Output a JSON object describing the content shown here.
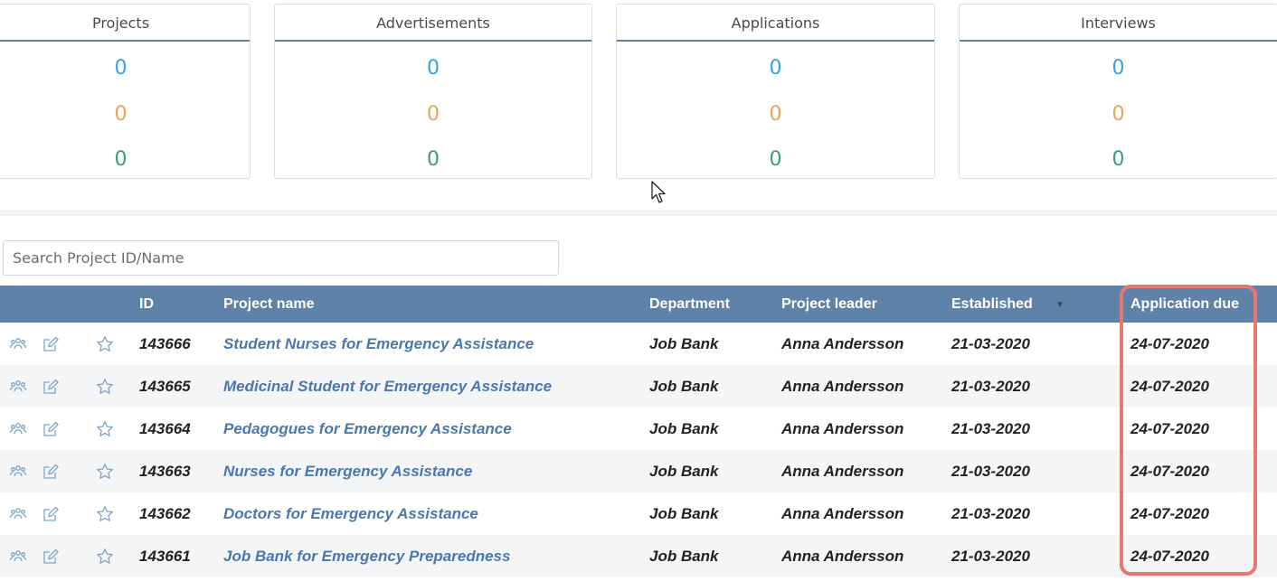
{
  "stats": [
    {
      "title": "Projects",
      "values": [
        "0",
        "0",
        "0"
      ]
    },
    {
      "title": "Advertisements",
      "values": [
        "0",
        "0",
        "0"
      ]
    },
    {
      "title": "Applications",
      "values": [
        "0",
        "0",
        "0"
      ]
    },
    {
      "title": "Interviews",
      "values": [
        "0",
        "0",
        "0"
      ]
    }
  ],
  "stat_colors": {
    "row1": "#36a3d9",
    "row2": "#e0a85c",
    "row3": "#3a9a86"
  },
  "search": {
    "placeholder": "Search Project ID/Name",
    "value": ""
  },
  "table": {
    "headers": {
      "id": "ID",
      "name": "Project name",
      "department": "Department",
      "leader": "Project leader",
      "established": "Established",
      "due": "Application due"
    },
    "sort_indicator": "▼",
    "rows": [
      {
        "id": "143666",
        "name": "Student Nurses for Emergency Assistance",
        "department": "Job Bank",
        "leader": "Anna Andersson",
        "established": "21-03-2020",
        "due": "24-07-2020"
      },
      {
        "id": "143665",
        "name": "Medicinal Student for Emergency Assistance",
        "department": "Job Bank",
        "leader": "Anna Andersson",
        "established": "21-03-2020",
        "due": "24-07-2020"
      },
      {
        "id": "143664",
        "name": "Pedagogues for Emergency Assistance",
        "department": "Job Bank",
        "leader": "Anna Andersson",
        "established": "21-03-2020",
        "due": "24-07-2020"
      },
      {
        "id": "143663",
        "name": "Nurses for Emergency Assistance",
        "department": "Job Bank",
        "leader": "Anna Andersson",
        "established": "21-03-2020",
        "due": "24-07-2020"
      },
      {
        "id": "143662",
        "name": "Doctors for Emergency Assistance",
        "department": "Job Bank",
        "leader": "Anna Andersson",
        "established": "21-03-2020",
        "due": "24-07-2020"
      },
      {
        "id": "143661",
        "name": "Job Bank for Emergency Preparedness",
        "department": "Job Bank",
        "leader": "Anna Andersson",
        "established": "21-03-2020",
        "due": "24-07-2020"
      }
    ],
    "row_icons": [
      "people-icon",
      "edit-icon",
      "star-icon"
    ]
  },
  "colors": {
    "header_bg": "#5f83a8",
    "link": "#4a78ad",
    "highlight": "#e8776f"
  }
}
